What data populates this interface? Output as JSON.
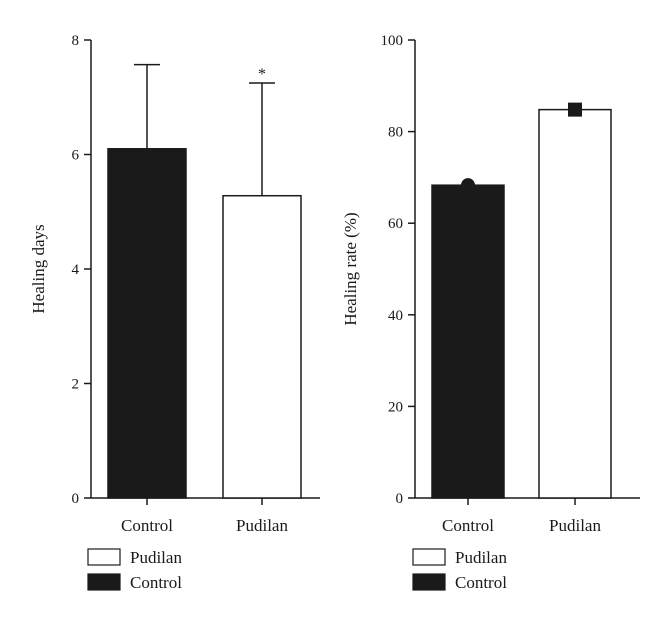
{
  "chart_data": [
    {
      "type": "bar",
      "categories": [
        "Control",
        "Pudilan"
      ],
      "values": [
        6.1,
        5.28
      ],
      "error": [
        1.47,
        1.97
      ],
      "fills": [
        "#1a1a1a",
        "#ffffff"
      ],
      "ylabel": "Healing days",
      "ylim": [
        0,
        8
      ],
      "yticks": [
        "0",
        "2",
        "4",
        "6",
        "8"
      ],
      "annotations": [
        {
          "category": "Pudilan",
          "text": "*"
        }
      ],
      "legend": [
        {
          "label": "Pudilan",
          "fill": "#ffffff"
        },
        {
          "label": "Control",
          "fill": "#1a1a1a"
        }
      ]
    },
    {
      "type": "bar",
      "categories": [
        "Control",
        "Pudilan"
      ],
      "values": [
        68.3,
        84.8
      ],
      "fills": [
        "#1a1a1a",
        "#ffffff"
      ],
      "markers": [
        "circle",
        "square"
      ],
      "ylabel": "Healing rate (%)",
      "ylim": [
        0,
        100
      ],
      "yticks": [
        "0",
        "20",
        "40",
        "60",
        "80",
        "100"
      ],
      "legend": [
        {
          "label": "Pudilan",
          "fill": "#ffffff"
        },
        {
          "label": "Control",
          "fill": "#1a1a1a"
        }
      ]
    }
  ]
}
